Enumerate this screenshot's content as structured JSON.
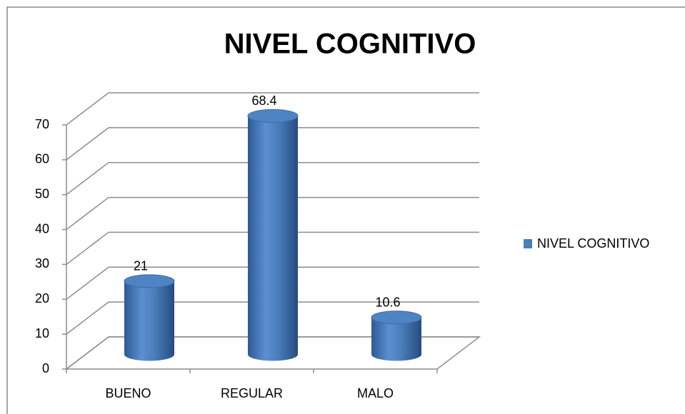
{
  "chart_data": {
    "type": "bar3d",
    "title": "NIVEL COGNITIVO",
    "categories": [
      "BUENO",
      "REGULAR",
      "MALO"
    ],
    "series": [
      {
        "name": "NIVEL COGNITIVO",
        "color": "#4a7ebb",
        "values": [
          21,
          68.4,
          10.6
        ]
      }
    ],
    "ylim": [
      0,
      70
    ],
    "yticks": [
      0,
      10,
      20,
      30,
      40,
      50,
      60,
      70
    ],
    "grid": true,
    "legend": "right"
  }
}
